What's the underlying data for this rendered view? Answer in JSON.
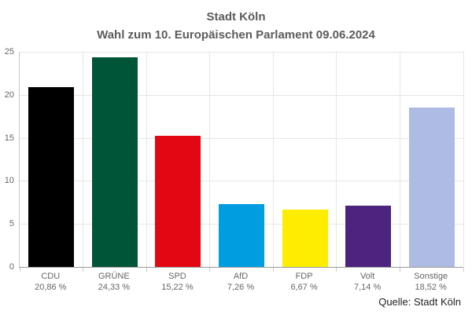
{
  "title": {
    "line1": "Stadt Köln",
    "line2": "Wahl zum 10. Europäischen Parlament 09.06.2024"
  },
  "source": "Quelle: Stadt Köln",
  "chart_data": {
    "type": "bar",
    "title": "Stadt Köln – Wahl zum 10. Europäischen Parlament 09.06.2024",
    "categories": [
      "CDU",
      "GRÜNE",
      "SPD",
      "AfD",
      "FDP",
      "Volt",
      "Sonstige"
    ],
    "values": [
      20.86,
      24.33,
      15.22,
      7.26,
      6.67,
      7.14,
      18.52
    ],
    "value_labels": [
      "20,86 %",
      "24,33 %",
      "15,22 %",
      "7,26 %",
      "6,67 %",
      "7,14 %",
      "18,52 %"
    ],
    "colors": [
      "#000000",
      "#005437",
      "#E30613",
      "#009EE0",
      "#FFED00",
      "#4C2480",
      "#AEBCE3"
    ],
    "xlabel": "",
    "ylabel": "",
    "ylim": [
      0,
      25
    ],
    "yticks": [
      0,
      5,
      10,
      15,
      20,
      25
    ],
    "grid": true,
    "legend": false,
    "colors_meaning": {
      "axis_label_gray": "#666666",
      "title_gray": "#5c5c5c",
      "gridline": "#e6e6e6"
    }
  }
}
